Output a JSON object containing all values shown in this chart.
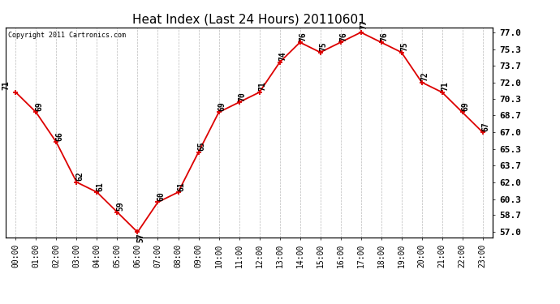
{
  "title": "Heat Index (Last 24 Hours) 20110601",
  "copyright": "Copyright 2011 Cartronics.com",
  "hours": [
    "00:00",
    "01:00",
    "02:00",
    "03:00",
    "04:00",
    "05:00",
    "06:00",
    "07:00",
    "08:00",
    "09:00",
    "10:00",
    "11:00",
    "12:00",
    "13:00",
    "14:00",
    "15:00",
    "16:00",
    "17:00",
    "18:00",
    "19:00",
    "20:00",
    "21:00",
    "22:00",
    "23:00"
  ],
  "values": [
    71,
    69,
    66,
    62,
    61,
    59,
    57,
    60,
    61,
    65,
    69,
    70,
    71,
    74,
    76,
    75,
    76,
    77,
    76,
    75,
    72,
    71,
    69,
    67
  ],
  "ylim": [
    56.5,
    77.5
  ],
  "yticks_right": [
    57.0,
    58.7,
    60.3,
    62.0,
    63.7,
    65.3,
    67.0,
    68.7,
    70.3,
    72.0,
    73.7,
    75.3,
    77.0
  ],
  "line_color": "#dd0000",
  "marker_color": "#dd0000",
  "bg_color": "#ffffff",
  "grid_color": "#bbbbbb",
  "title_fontsize": 11,
  "tick_fontsize": 7,
  "annot_fontsize": 7,
  "copyright_fontsize": 6
}
